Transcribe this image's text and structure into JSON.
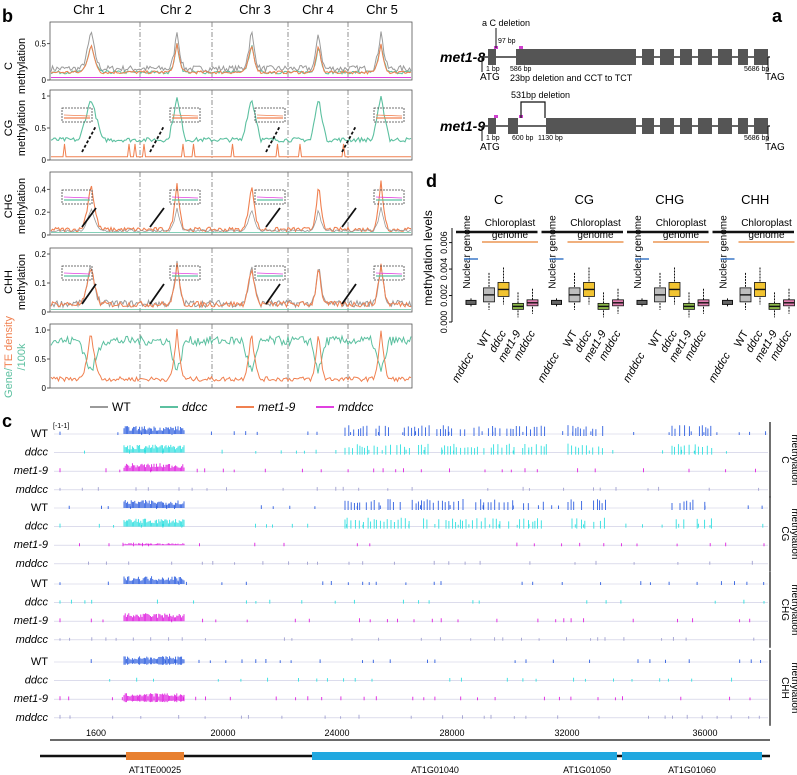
{
  "panel_labels": {
    "a": "a",
    "b": "b",
    "c": "c",
    "d": "d"
  },
  "colors": {
    "WT": "#9a9a9a",
    "ddcc": "#5cc0a0",
    "met1_9": "#f08050",
    "mddcc": "#e040e0",
    "c_WT": "#3060e0",
    "c_ddcc": "#30e0e0",
    "c_met1": "#e020e0",
    "c_mddcc": "#a0a0d0",
    "gene_orange": "#e88030",
    "gene_blue": "#20a8e0",
    "box_yellow": "#f2c431",
    "box_green": "#8cb84a",
    "box_pink": "#e07fb0",
    "box_gray": "#bdbdbd",
    "nuc": "#3a78c8"
  },
  "panel_b": {
    "chromosomes": [
      "Chr 1",
      "Chr 2",
      "Chr 3",
      "Chr 4",
      "Chr 5"
    ],
    "rows": [
      {
        "id": "c",
        "label1": "C",
        "label2": "methylation",
        "ticks": [
          "0",
          "0.5"
        ]
      },
      {
        "id": "cg",
        "label1": "CG",
        "label2": "methylation",
        "ticks": [
          "0",
          "0.5",
          "1"
        ]
      },
      {
        "id": "chg",
        "label1": "CHG",
        "label2": "methylation",
        "ticks": [
          "0",
          "0.2",
          "0.4"
        ]
      },
      {
        "id": "chh",
        "label1": "CHH",
        "label2": "methylation",
        "ticks": [
          "0",
          "0.1",
          "0.2"
        ]
      },
      {
        "id": "density",
        "label_gene": "Gene",
        "label_slash": "/",
        "label_te": "TE density",
        "label_100k": "/100k",
        "ticks": [
          "0",
          "0.5",
          "1.0"
        ]
      }
    ],
    "legend": [
      "WT",
      "ddcc",
      "met1-9",
      "mddcc"
    ]
  },
  "panel_a": {
    "met1_8": {
      "name": "met1-8",
      "deletion": "a C deletion",
      "pos97": "97 bp",
      "pos1": "1 bp",
      "pos586": "586 bp",
      "note": "23bp deletion and CCT to TCT",
      "end": "5686 bp",
      "atg": "ATG",
      "tag": "TAG"
    },
    "met1_9": {
      "name": "met1-9",
      "deletion": "531bp deletion",
      "pos1": "1 bp",
      "pos600": "600 bp",
      "pos1130": "1130 bp",
      "end": "5686 bp",
      "atg": "ATG",
      "tag": "TAG"
    }
  },
  "panel_d": {
    "ylabel": "methylation levels",
    "yticks": [
      "0.000",
      "0.002",
      "0.004",
      "0.006"
    ],
    "ylim": [
      0,
      0.0068
    ],
    "groups": [
      {
        "title": "C",
        "nuclear": 0.00148,
        "chl": [
          0.00205,
          0.00246,
          0.00118,
          0.00145
        ]
      },
      {
        "title": "CG",
        "nuclear": 0.00148,
        "chl": [
          0.00205,
          0.00246,
          0.00118,
          0.00145
        ]
      },
      {
        "title": "CHG",
        "nuclear": 0.00148,
        "chl": [
          0.00205,
          0.00246,
          0.00118,
          0.00145
        ]
      },
      {
        "title": "CHH",
        "nuclear": 0.00148,
        "chl": [
          0.00205,
          0.00246,
          0.00118,
          0.00145
        ]
      }
    ],
    "nuclear_label": "Nuclear genome",
    "chl_label1": "Chloroplast",
    "chl_label2": "genome",
    "xlabels": [
      "mddcc",
      "WT",
      "ddcc",
      "met1-9",
      "mddcc"
    ]
  },
  "panel_c": {
    "scale": "[-1-1]",
    "groups": [
      {
        "label1": "C",
        "label2": "methylation"
      },
      {
        "label1": "CG",
        "label2": "methylation"
      },
      {
        "label1": "CHG",
        "label2": "methylation"
      },
      {
        "label1": "CHH",
        "label2": "methylation"
      }
    ],
    "track_labels": [
      "WT",
      "ddcc",
      "met1-9",
      "mddcc"
    ],
    "axis_ticks": [
      "1600",
      "20000",
      "24000",
      "28000",
      "32000",
      "36000"
    ],
    "genes": [
      "AT1TE00025",
      "AT1G01040",
      "AT1G01050",
      "AT1G01060"
    ]
  }
}
